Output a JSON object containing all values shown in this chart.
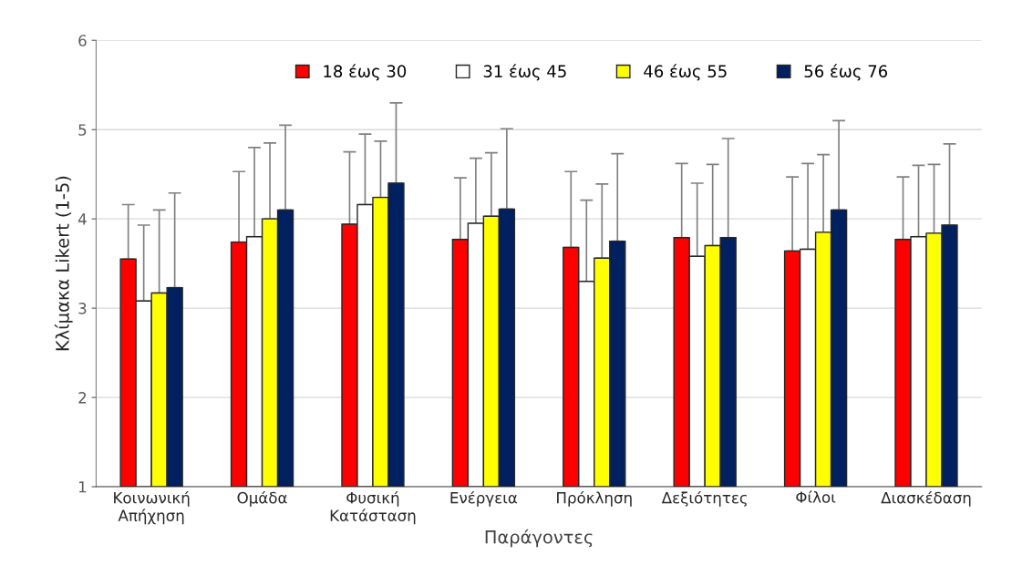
{
  "chart_data": {
    "type": "bar",
    "xlabel": "Παράγοντες",
    "ylabel": "Κλίμακα Likert (1-5)",
    "categories": [
      "Κοινωνική\nΑπήχηση",
      "Ομάδα",
      "Φυσική\nΚατάσταση",
      "Ενέργεια",
      "Πρόκληση",
      "Δεξιότητες",
      "Φίλοι",
      "Διασκέδαση"
    ],
    "series": [
      {
        "name": "18 έως 30",
        "color": "#ff0000",
        "values": [
          3.55,
          3.74,
          3.94,
          3.77,
          3.68,
          3.79,
          3.64,
          3.77
        ],
        "errors": [
          [
            3.55,
            4.16
          ],
          [
            3.74,
            4.53
          ],
          [
            3.94,
            4.75
          ],
          [
            3.77,
            4.46
          ],
          [
            3.68,
            4.53
          ],
          [
            3.79,
            4.62
          ],
          [
            3.64,
            4.47
          ],
          [
            3.77,
            4.47
          ]
        ]
      },
      {
        "name": "31 έως 45",
        "color": "#ffffff",
        "values": [
          3.08,
          3.8,
          4.16,
          3.95,
          3.3,
          3.58,
          3.66,
          3.8
        ],
        "errors": [
          [
            3.08,
            3.93
          ],
          [
            3.8,
            4.8
          ],
          [
            4.16,
            4.95
          ],
          [
            3.95,
            4.68
          ],
          [
            3.3,
            4.21
          ],
          [
            3.58,
            4.4
          ],
          [
            3.66,
            4.62
          ],
          [
            3.8,
            4.6
          ]
        ]
      },
      {
        "name": "46 έως 55",
        "color": "#ffff00",
        "values": [
          3.17,
          4.0,
          4.24,
          4.03,
          3.56,
          3.7,
          3.85,
          3.84
        ],
        "errors": [
          [
            3.17,
            4.1
          ],
          [
            4.0,
            4.85
          ],
          [
            4.24,
            4.87
          ],
          [
            4.03,
            4.74
          ],
          [
            3.56,
            4.39
          ],
          [
            3.7,
            4.61
          ],
          [
            3.85,
            4.72
          ],
          [
            3.84,
            4.61
          ]
        ]
      },
      {
        "name": "56 έως 76",
        "color": "#002060",
        "values": [
          3.23,
          4.1,
          4.4,
          4.11,
          3.75,
          3.79,
          4.1,
          3.93
        ],
        "errors": [
          [
            3.23,
            4.29
          ],
          [
            4.1,
            5.05
          ],
          [
            4.4,
            5.3
          ],
          [
            4.11,
            5.01
          ],
          [
            3.75,
            4.73
          ],
          [
            3.79,
            4.9
          ],
          [
            4.1,
            5.1
          ],
          [
            3.93,
            4.84
          ]
        ]
      }
    ],
    "ylim": [
      1,
      6
    ],
    "yticks": [
      1,
      2,
      3,
      4,
      5,
      6
    ],
    "grid": "y",
    "legend": "top"
  }
}
